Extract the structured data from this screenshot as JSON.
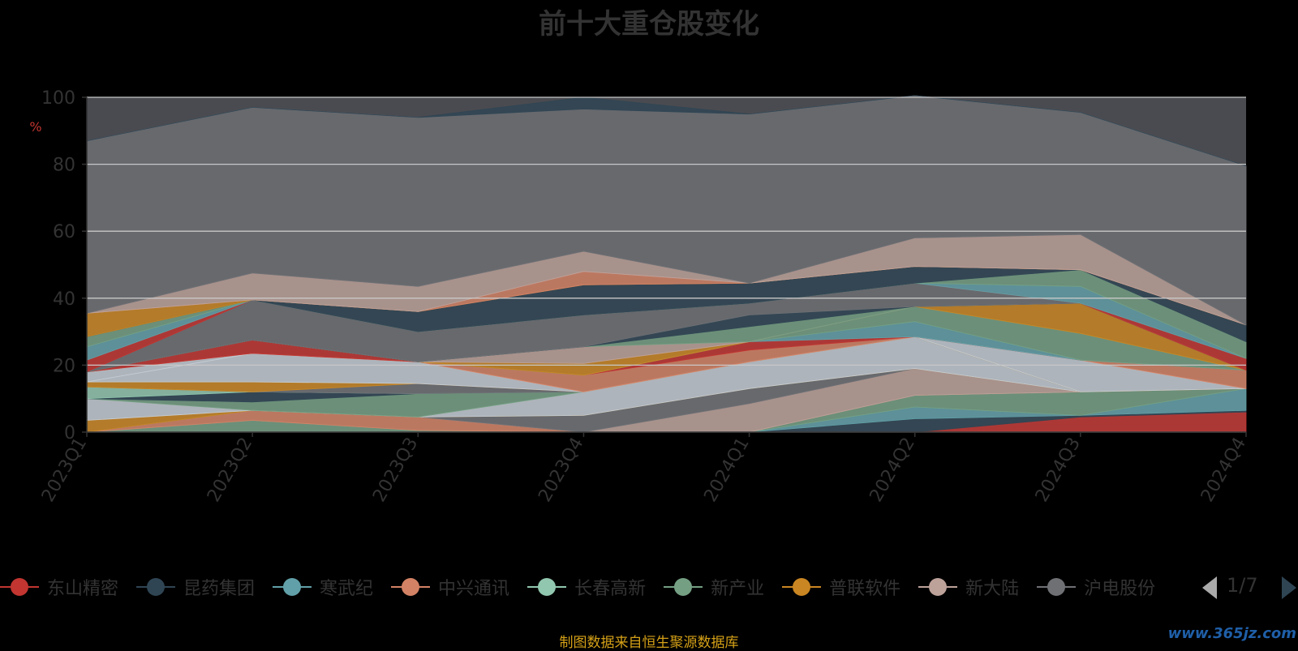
{
  "title": "前十大重仓股变化",
  "source_note": "制图数据来自恒生聚源数据库",
  "watermark": "www.365jz.com",
  "pager": {
    "text": "1/7"
  },
  "legend": [
    {
      "name": "东山精密",
      "color": "#c23531"
    },
    {
      "name": "昆药集团",
      "color": "#2f4554"
    },
    {
      "name": "寒武纪",
      "color": "#61a0a8"
    },
    {
      "name": "中兴通讯",
      "color": "#d48265"
    },
    {
      "name": "长春高新",
      "color": "#91c7ae"
    },
    {
      "name": "新产业",
      "color": "#749f83"
    },
    {
      "name": "普联软件",
      "color": "#ca8622"
    },
    {
      "name": "新大陆",
      "color": "#bda29a"
    },
    {
      "name": "沪电股份",
      "color": "#6e7074"
    }
  ],
  "chart_data": {
    "type": "area",
    "stacked": true,
    "title": "前十大重仓股变化",
    "ylabel": "%",
    "ylim": [
      0,
      100
    ],
    "yticks": [
      0,
      20,
      40,
      60,
      80,
      100
    ],
    "grid": true,
    "legend_position": "bottom",
    "categories": [
      "2023Q1",
      "2023Q2",
      "2023Q3",
      "2023Q4",
      "2024Q1",
      "2024Q2",
      "2024Q3",
      "2024Q4"
    ],
    "series": [
      {
        "color": "#c23531",
        "values": [
          0,
          0,
          0,
          0,
          0,
          0,
          4.5,
          6
        ]
      },
      {
        "color": "#2f4554",
        "values": [
          0,
          0,
          0,
          0,
          0,
          4,
          0.5,
          0.5
        ]
      },
      {
        "color": "#61a0a8",
        "values": [
          0,
          0,
          0,
          0,
          0,
          3.5,
          0,
          6.5
        ]
      },
      {
        "color": "#749f83",
        "values": [
          0,
          3.5,
          0.5,
          0,
          0,
          3.5,
          7,
          0
        ]
      },
      {
        "color": "#d48265",
        "values": [
          0,
          3,
          4,
          0,
          0,
          0,
          0,
          0
        ]
      },
      {
        "color": "#bda29a",
        "values": [
          0,
          0,
          0,
          0,
          8.5,
          8,
          0,
          0
        ]
      },
      {
        "color": "#6e7074",
        "values": [
          0,
          0,
          0,
          5,
          4.5,
          0,
          0,
          0
        ]
      },
      {
        "color": "#ca8622",
        "values": [
          3.5,
          0,
          0,
          0,
          0,
          0,
          0,
          0
        ]
      },
      {
        "color": "#c4ccd3",
        "values": [
          6.5,
          0,
          0,
          7,
          8,
          9.5,
          0,
          0
        ]
      },
      {
        "color": "#749f83",
        "values": [
          0,
          2.5,
          7,
          0,
          0,
          0,
          0,
          0
        ]
      },
      {
        "color": "#2f4554",
        "values": [
          0,
          3,
          0,
          0,
          0,
          0,
          0,
          0
        ]
      },
      {
        "color": "#91c7ae",
        "values": [
          3.5,
          0,
          0,
          0,
          0,
          0,
          0,
          0
        ]
      },
      {
        "color": "#6e7074",
        "values": [
          0,
          0,
          3,
          0,
          0,
          0,
          0,
          0
        ]
      },
      {
        "color": "#ca8622",
        "values": [
          1.5,
          3,
          0,
          0,
          0,
          0,
          0,
          0
        ]
      },
      {
        "color": "#c4ccd3",
        "values": [
          0,
          8.5,
          6.5,
          0,
          0,
          0,
          9.5,
          0
        ]
      },
      {
        "color": "#c4ccd3",
        "values": [
          3,
          0,
          0,
          0,
          0,
          0,
          0,
          0
        ]
      },
      {
        "color": "#d48265",
        "values": [
          0,
          0,
          0,
          5,
          3.5,
          0,
          0,
          5.5
        ]
      },
      {
        "color": "#c23531",
        "values": [
          0,
          4,
          0,
          0,
          2.5,
          0,
          0,
          0
        ]
      },
      {
        "color": "#61a0a8",
        "values": [
          0,
          0,
          0,
          0,
          0,
          4.5,
          0,
          0
        ]
      },
      {
        "color": "#749f83",
        "values": [
          0,
          0,
          0,
          0,
          0,
          4.5,
          8,
          0
        ]
      },
      {
        "color": "#ca8622",
        "values": [
          0,
          0,
          0,
          3.5,
          0,
          0,
          9,
          0
        ]
      },
      {
        "color": "#bda29a",
        "values": [
          0,
          0,
          0,
          5,
          0,
          0,
          0,
          0
        ]
      },
      {
        "color": "#749f83",
        "values": [
          0,
          0,
          0,
          0,
          4.5,
          0,
          0,
          0
        ]
      },
      {
        "color": "#2f4554",
        "values": [
          0,
          0,
          0,
          0,
          3.5,
          0,
          0,
          0
        ]
      },
      {
        "color": "#6e7074",
        "values": [
          0,
          12,
          9,
          9.5,
          3.5,
          7,
          0,
          0
        ]
      },
      {
        "color": "#c23531",
        "values": [
          3.5,
          0,
          0,
          0,
          0,
          0,
          0,
          3.5
        ]
      },
      {
        "color": "#61a0a8",
        "values": [
          4,
          0,
          0,
          0,
          0,
          0,
          5,
          0
        ]
      },
      {
        "color": "#749f83",
        "values": [
          3,
          0,
          0,
          0,
          0,
          0,
          5,
          5
        ]
      },
      {
        "color": "#2f4554",
        "values": [
          0,
          0,
          6,
          9,
          6,
          5,
          0,
          5
        ]
      },
      {
        "color": "#ca8622",
        "values": [
          7,
          0,
          0,
          0,
          0,
          0,
          0,
          0
        ]
      },
      {
        "color": "#d48265",
        "values": [
          0,
          0,
          0,
          4,
          0,
          0,
          0,
          0
        ]
      },
      {
        "color": "#bda29a",
        "values": [
          0,
          8,
          7.5,
          6,
          0,
          8.5,
          10.5,
          0
        ]
      },
      {
        "color": "#6e7074",
        "values": [
          51.5,
          49.5,
          50.5,
          42.5,
          50.5,
          42.5,
          36.5,
          47.5
        ]
      },
      {
        "color": "#2f4554",
        "values": [
          0,
          0,
          0,
          3.5,
          0,
          0,
          0,
          0
        ]
      }
    ]
  }
}
